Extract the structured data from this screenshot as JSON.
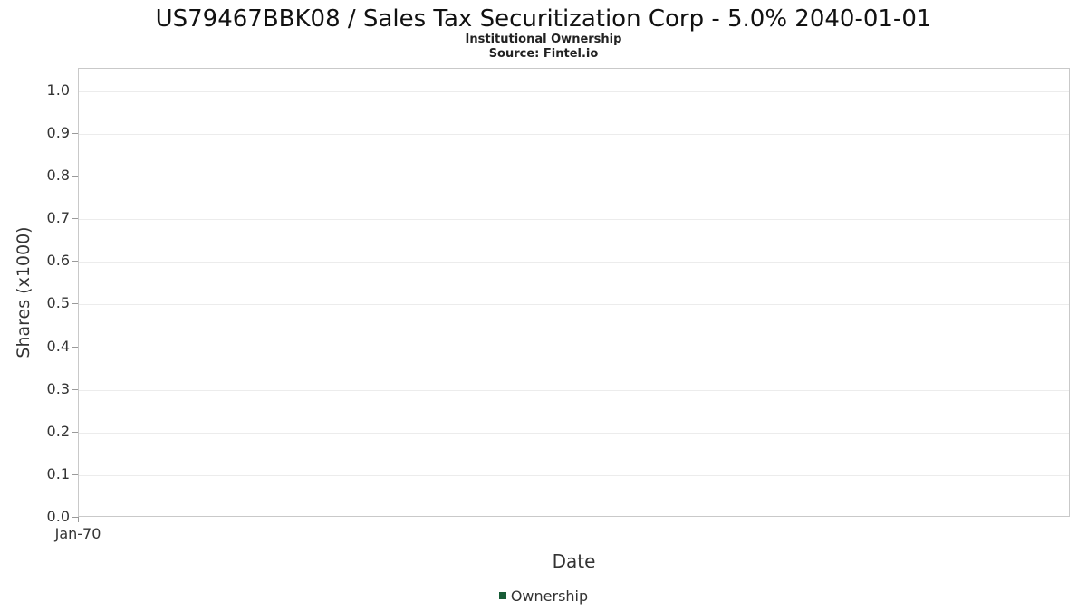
{
  "chart": {
    "title": "US79467BBK08 / Sales Tax Securitization Corp - 5.0% 2040-01-01",
    "subtitle": "Institutional Ownership",
    "source": "Source: Fintel.io",
    "xlabel": "Date",
    "ylabel": "Shares (x1000)"
  },
  "legend": {
    "items": [
      {
        "label": "Ownership",
        "color": "#185C37"
      }
    ]
  },
  "chart_data": {
    "type": "line",
    "title": "US79467BBK08 / Sales Tax Securitization Corp - 5.0% 2040-01-01",
    "subtitle": "Institutional Ownership",
    "source": "Source: Fintel.io",
    "xlabel": "Date",
    "ylabel": "Shares (x1000)",
    "ylim": [
      0,
      1.053
    ],
    "y_ticks": [
      0.0,
      0.1,
      0.2,
      0.3,
      0.4,
      0.5,
      0.6,
      0.7,
      0.8,
      0.9,
      1.0
    ],
    "x_ticks": [
      {
        "label": "Jan-70",
        "frac": 0
      }
    ],
    "grid": true,
    "legend_position": "bottom",
    "series": [
      {
        "name": "Ownership",
        "color": "#185C37",
        "x": [],
        "values": []
      }
    ],
    "note": "empty plot area - no data points rendered"
  }
}
